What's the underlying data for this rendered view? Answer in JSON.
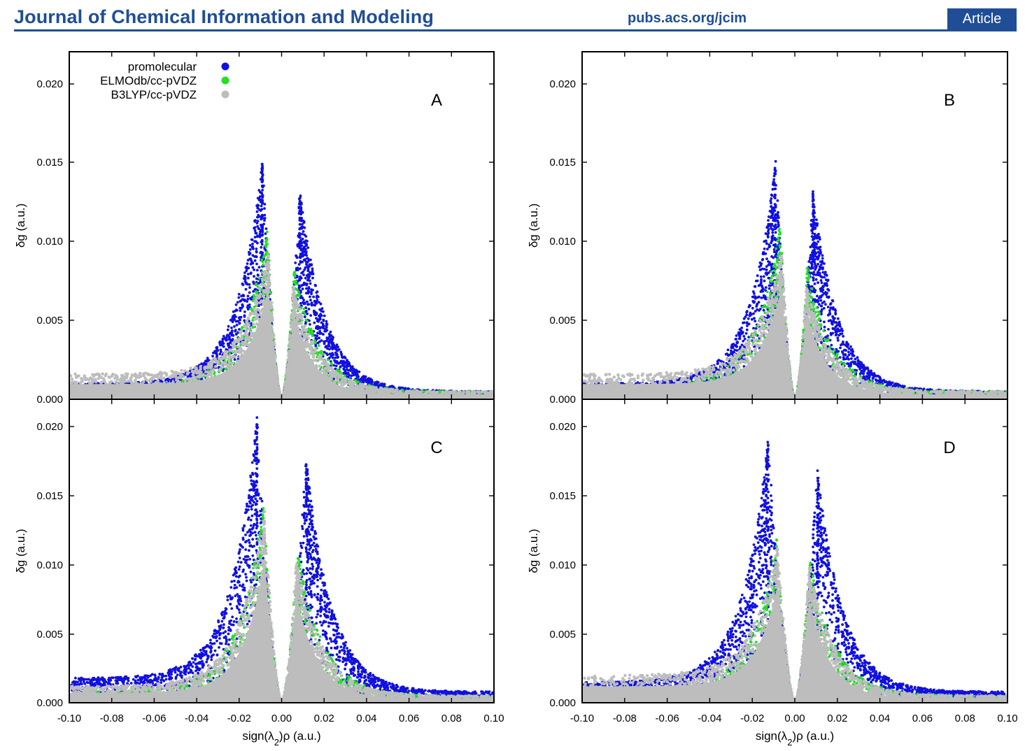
{
  "header": {
    "journal": "Journal of Chemical Information and Modeling",
    "url": "pubs.acs.org/jcim",
    "badge": "Article"
  },
  "colors": {
    "header_blue": "#1f4e96",
    "promolecular": "#1010e0",
    "elmodb": "#22e022",
    "b3lyp": "#bdbdbd"
  },
  "chart_data": [
    {
      "type": "scatter",
      "panel_label": "A",
      "xlabel": "",
      "ylabel": "δg (a.u.)",
      "xlim": [
        -0.1,
        0.1
      ],
      "ylim": [
        0.0,
        0.022
      ],
      "yticks": [
        "0.000",
        "0.005",
        "0.010",
        "0.015",
        "0.020"
      ],
      "xticks": [],
      "legend": {
        "placement": "top-left",
        "entries": [
          "promolecular",
          "ELMOdb/cc-pVDZ",
          "B3LYP/cc-pVDZ"
        ]
      },
      "series": [
        {
          "name": "promolecular",
          "color": "#1010e0",
          "peaks": [
            [
              -0.009,
              0.0152
            ],
            [
              0.0085,
              0.0133
            ]
          ],
          "tail_left": 0.001,
          "tail_right": 0.0005
        },
        {
          "name": "ELMOdb/cc-pVDZ",
          "color": "#22e022",
          "peaks": [
            [
              -0.0068,
              0.0112
            ],
            [
              0.0058,
              0.0083
            ]
          ]
        },
        {
          "name": "B3LYP/cc-pVDZ",
          "color": "#bdbdbd",
          "peaks": [
            [
              -0.0062,
              0.0095
            ],
            [
              0.0055,
              0.0072
            ]
          ],
          "tail_left": 0.0016
        }
      ]
    },
    {
      "type": "scatter",
      "panel_label": "B",
      "xlabel": "",
      "ylabel": "δg (a.u.)",
      "xlim": [
        -0.1,
        0.1
      ],
      "ylim": [
        0.0,
        0.022
      ],
      "yticks": [
        "0.000",
        "0.005",
        "0.010",
        "0.015",
        "0.020"
      ],
      "xticks": [],
      "series": [
        {
          "name": "promolecular",
          "color": "#1010e0",
          "peaks": [
            [
              -0.009,
              0.0151
            ],
            [
              0.0085,
              0.0133
            ]
          ],
          "tail_left": 0.001,
          "tail_right": 0.0005
        },
        {
          "name": "ELMOdb/cc-pVDZ",
          "color": "#22e022",
          "peaks": [
            [
              -0.0068,
              0.0112
            ],
            [
              0.0058,
              0.0085
            ]
          ]
        },
        {
          "name": "B3LYP/cc-pVDZ",
          "color": "#bdbdbd",
          "peaks": [
            [
              -0.0062,
              0.0095
            ],
            [
              0.0055,
              0.0072
            ]
          ],
          "tail_left": 0.0016
        }
      ]
    },
    {
      "type": "scatter",
      "panel_label": "C",
      "xlabel": "sign(λ₂)ρ (a.u.)",
      "ylabel": "δg (a.u.)",
      "xlim": [
        -0.1,
        0.1
      ],
      "ylim": [
        0.0,
        0.022
      ],
      "yticks": [
        "0.000",
        "0.005",
        "0.010",
        "0.015",
        "0.020"
      ],
      "xticks": [
        "-0.10",
        "-0.08",
        "-0.06",
        "-0.04",
        "-0.02",
        "0.00",
        "0.02",
        "0.04",
        "0.06",
        "0.08",
        "0.10"
      ],
      "series": [
        {
          "name": "promolecular",
          "color": "#1010e0",
          "peaks": [
            [
              -0.0115,
              0.021
            ],
            [
              0.0115,
              0.0179
            ]
          ],
          "tail_left": 0.0018,
          "tail_right": 0.0008
        },
        {
          "name": "ELMOdb/cc-pVDZ",
          "color": "#22e022",
          "peaks": [
            [
              -0.0085,
              0.0145
            ],
            [
              0.0075,
              0.011
            ]
          ]
        },
        {
          "name": "B3LYP/cc-pVDZ",
          "color": "#bdbdbd",
          "peaks": [
            [
              -0.008,
              0.014
            ],
            [
              0.007,
              0.0105
            ]
          ],
          "tail_left": 0.0012
        }
      ]
    },
    {
      "type": "scatter",
      "panel_label": "D",
      "xlabel": "sign(λ₂)ρ (a.u.)",
      "ylabel": "δg (a.u.)",
      "xlim": [
        -0.1,
        0.1
      ],
      "ylim": [
        0.0,
        0.022
      ],
      "yticks": [
        "0.000",
        "0.005",
        "0.010",
        "0.015",
        "0.020"
      ],
      "xticks": [
        "-0.10",
        "-0.08",
        "-0.06",
        "-0.04",
        "-0.02",
        "0.00",
        "0.02",
        "0.04",
        "0.06",
        "0.08",
        "0.10"
      ],
      "series": [
        {
          "name": "promolecular",
          "color": "#1010e0",
          "peaks": [
            [
              -0.0125,
              0.0194
            ],
            [
              0.0105,
              0.0172
            ]
          ],
          "tail_left": 0.0015,
          "tail_right": 0.0008
        },
        {
          "name": "ELMOdb/cc-pVDZ",
          "color": "#22e022",
          "peaks": [
            [
              -0.0085,
              0.012
            ],
            [
              0.007,
              0.0105
            ]
          ]
        },
        {
          "name": "B3LYP/cc-pVDZ",
          "color": "#bdbdbd",
          "peaks": [
            [
              -0.008,
              0.0115
            ],
            [
              0.0068,
              0.01
            ]
          ],
          "tail_left": 0.002
        }
      ]
    }
  ]
}
